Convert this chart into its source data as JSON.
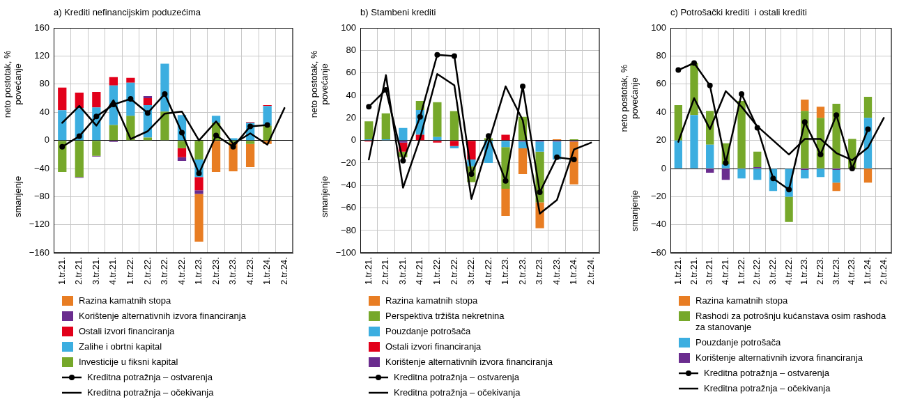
{
  "chart_data": [
    {
      "type": "bar",
      "title": "a) Krediti nefinancijskim poduzećima",
      "ylabel": "neto postotak, %",
      "annotations": [
        "povećanje",
        "smanjenje"
      ],
      "stacked": true,
      "grid": true,
      "legend": "bottom",
      "categories": [
        "1.tr.21.",
        "2.tr.21.",
        "3.tr.21.",
        "4.tr.21.",
        "1.tr.22.",
        "2.tr.22.",
        "3.tr.22.",
        "4.tr.22.",
        "1.tr.23.",
        "2.tr.23.",
        "3.tr.23.",
        "4.tr.23.",
        "1.tr.24.",
        "2.tr.24."
      ],
      "ylim": [
        -160,
        160
      ],
      "yticks": [
        {
          "value": -160,
          "label": "−160"
        },
        {
          "value": -120,
          "label": "−120"
        },
        {
          "value": -80,
          "label": "−80"
        },
        {
          "value": -40,
          "label": "−40"
        },
        0,
        40,
        80,
        120,
        160
      ],
      "series": [
        {
          "name": "Investicije u fiksni kapital",
          "color": "#76a82a",
          "values": [
            -45,
            -52,
            -22,
            22,
            35,
            4,
            41,
            -11,
            -27,
            25,
            -3,
            -5,
            21,
            null
          ]
        },
        {
          "name": "Zalihe i obrtni kapital",
          "color": "#3caee0",
          "values": [
            43,
            46,
            47,
            56,
            47,
            46,
            68,
            36,
            -25,
            10,
            3,
            25,
            28,
            null
          ]
        },
        {
          "name": "Ostali izvori financiranja",
          "color": "#e2001a",
          "values": [
            32,
            22,
            22,
            12,
            7,
            10,
            null,
            -13,
            -19,
            null,
            null,
            1,
            1,
            null
          ]
        },
        {
          "name": "Korištenje alternativnih izvora financiranja",
          "color": "#6a2c8e",
          "values": [
            null,
            -1,
            -1,
            -2,
            null,
            3,
            null,
            -5,
            -5,
            null,
            null,
            null,
            null,
            null
          ]
        },
        {
          "name": "Razina kamatnih stopa",
          "color": "#e87d23",
          "values": [
            null,
            null,
            null,
            null,
            null,
            null,
            null,
            null,
            -68,
            -45,
            -41,
            -33,
            -5,
            null
          ]
        },
        {
          "name": "Kreditna potražnja – ostvarenja",
          "type": "line",
          "marker": "circle",
          "color": "#000000",
          "values": [
            -9,
            6,
            34,
            51,
            59,
            39,
            66,
            11,
            -47,
            7,
            -9,
            20,
            22,
            null
          ]
        },
        {
          "name": "Kreditna potražnja – očekivanja",
          "type": "line",
          "marker": "none",
          "color": "#000000",
          "values": [
            25,
            49,
            21,
            57,
            2,
            13,
            38,
            41,
            0,
            27,
            -5,
            10,
            -6,
            46
          ]
        }
      ]
    },
    {
      "type": "bar",
      "title": "b) Stambeni krediti",
      "ylabel": "neto postotak, %",
      "annotations": [
        "povećanje",
        "smanjenje"
      ],
      "stacked": true,
      "grid": true,
      "legend": "bottom",
      "categories": [
        "1.tr.21.",
        "2.tr.21.",
        "3.tr.21.",
        "4.tr.21.",
        "1.tr.22.",
        "2.tr.22.",
        "3.tr.22.",
        "4.tr.22.",
        "1.tr.23.",
        "2.tr.23.",
        "3.tr.23.",
        "4.tr.23.",
        "1.tr.24.",
        "2.tr.24."
      ],
      "ylim": [
        -100,
        100
      ],
      "yticks": [
        {
          "value": -100,
          "label": "−100"
        },
        {
          "value": -80,
          "label": "−80"
        },
        {
          "value": -60,
          "label": "−60"
        },
        {
          "value": -40,
          "label": "−40"
        },
        {
          "value": -20,
          "label": "−20"
        },
        0,
        20,
        40,
        60,
        80,
        100
      ],
      "series": [
        {
          "name": "Korištenje alternativnih izvora financiranja",
          "color": "#6a2c8e",
          "values": [
            null,
            null,
            -2,
            null,
            null,
            null,
            null,
            null,
            null,
            -1,
            -1,
            -1,
            -1,
            null
          ]
        },
        {
          "name": "Ostali izvori financiranja",
          "color": "#e2001a",
          "values": [
            -1,
            null,
            -8,
            5,
            -2,
            -5,
            -17,
            null,
            5,
            null,
            null,
            null,
            null,
            null
          ]
        },
        {
          "name": "Pouzdanje potrošača",
          "color": "#3caee0",
          "values": [
            1,
            1,
            11,
            22,
            3,
            -2,
            -6,
            -20,
            -6,
            -6,
            -9,
            -16,
            null,
            null
          ]
        },
        {
          "name": "Perspektiva tržišta nekretnina",
          "color": "#76a82a",
          "values": [
            16,
            23,
            -5,
            8,
            31,
            26,
            -14,
            2,
            -37,
            21,
            -45,
            null,
            1,
            null
          ]
        },
        {
          "name": "Razina kamatnih stopa",
          "color": "#e87d23",
          "values": [
            null,
            null,
            null,
            null,
            null,
            null,
            null,
            null,
            -24,
            -23,
            -23,
            1,
            -38,
            null
          ]
        },
        {
          "name": "Kreditna potražnja – ostvarenja",
          "type": "line",
          "marker": "circle",
          "color": "#000000",
          "values": [
            30,
            45,
            -18,
            21,
            76,
            75,
            -30,
            4,
            -36,
            48,
            -46,
            -15,
            -17,
            null
          ]
        },
        {
          "name": "Kreditna potražnja – očekivanja",
          "type": "line",
          "marker": "none",
          "color": "#000000",
          "values": [
            -17,
            58,
            -42,
            2,
            59,
            49,
            -52,
            -2,
            48,
            18,
            -65,
            -53,
            -8,
            -2
          ]
        }
      ]
    },
    {
      "type": "bar",
      "title": "c) Potrošački krediti  i ostali krediti",
      "ylabel": "neto postotak, %",
      "annotations": [
        "povećanje",
        "smanjenje"
      ],
      "stacked": true,
      "grid": true,
      "legend": "bottom",
      "categories": [
        "1.tr.21.",
        "2.tr.21.",
        "3.tr.21.",
        "4.tr.21.",
        "1.tr.22.",
        "2.tr.22.",
        "3.tr.22.",
        "4.tr.22.",
        "1.tr.23.",
        "2.tr.23.",
        "3.tr.23.",
        "4.tr.23.",
        "1.tr.24.",
        "2.tr.24."
      ],
      "ylim": [
        -60,
        100
      ],
      "yticks": [
        {
          "value": -60,
          "label": "−60"
        },
        {
          "value": -40,
          "label": "−40"
        },
        {
          "value": -20,
          "label": "−20"
        },
        0,
        20,
        40,
        60,
        80,
        100
      ],
      "series": [
        {
          "name": "Korištenje alternativnih izvora financiranja",
          "color": "#6a2c8e",
          "values": [
            null,
            null,
            -3,
            -8,
            null,
            1,
            null,
            null,
            -1,
            null,
            -1,
            null,
            null,
            null
          ]
        },
        {
          "name": "Pouzdanje potrošača",
          "color": "#3caee0",
          "values": [
            20,
            38,
            17,
            3,
            -7,
            -8,
            -16,
            -20,
            -6,
            -6,
            -9,
            null,
            36,
            null
          ]
        },
        {
          "name": "Rashodi za potrošnju kućanstava osim rashoda za stanovanje",
          "color": "#76a82a",
          "values": [
            25,
            37,
            24,
            15,
            48,
            11,
            null,
            -18,
            41,
            36,
            46,
            21,
            15,
            null
          ]
        },
        {
          "name": "Razina kamatnih stopa",
          "color": "#e87d23",
          "values": [
            null,
            null,
            null,
            null,
            null,
            null,
            null,
            null,
            8,
            8,
            -6,
            null,
            -10,
            null
          ]
        },
        {
          "name": "Kreditna potražnja – ostvarenja",
          "type": "line",
          "marker": "circle",
          "color": "#000000",
          "values": [
            70,
            75,
            59,
            4,
            53,
            29,
            -7,
            -15,
            33,
            10,
            38,
            0,
            28,
            null
          ]
        },
        {
          "name": "Kreditna potražnja – očekivanja",
          "type": "line",
          "marker": "none",
          "color": "#000000",
          "values": [
            19,
            50,
            28,
            55,
            44,
            30,
            20,
            10,
            21,
            21,
            11,
            6,
            15,
            36
          ]
        }
      ]
    }
  ]
}
